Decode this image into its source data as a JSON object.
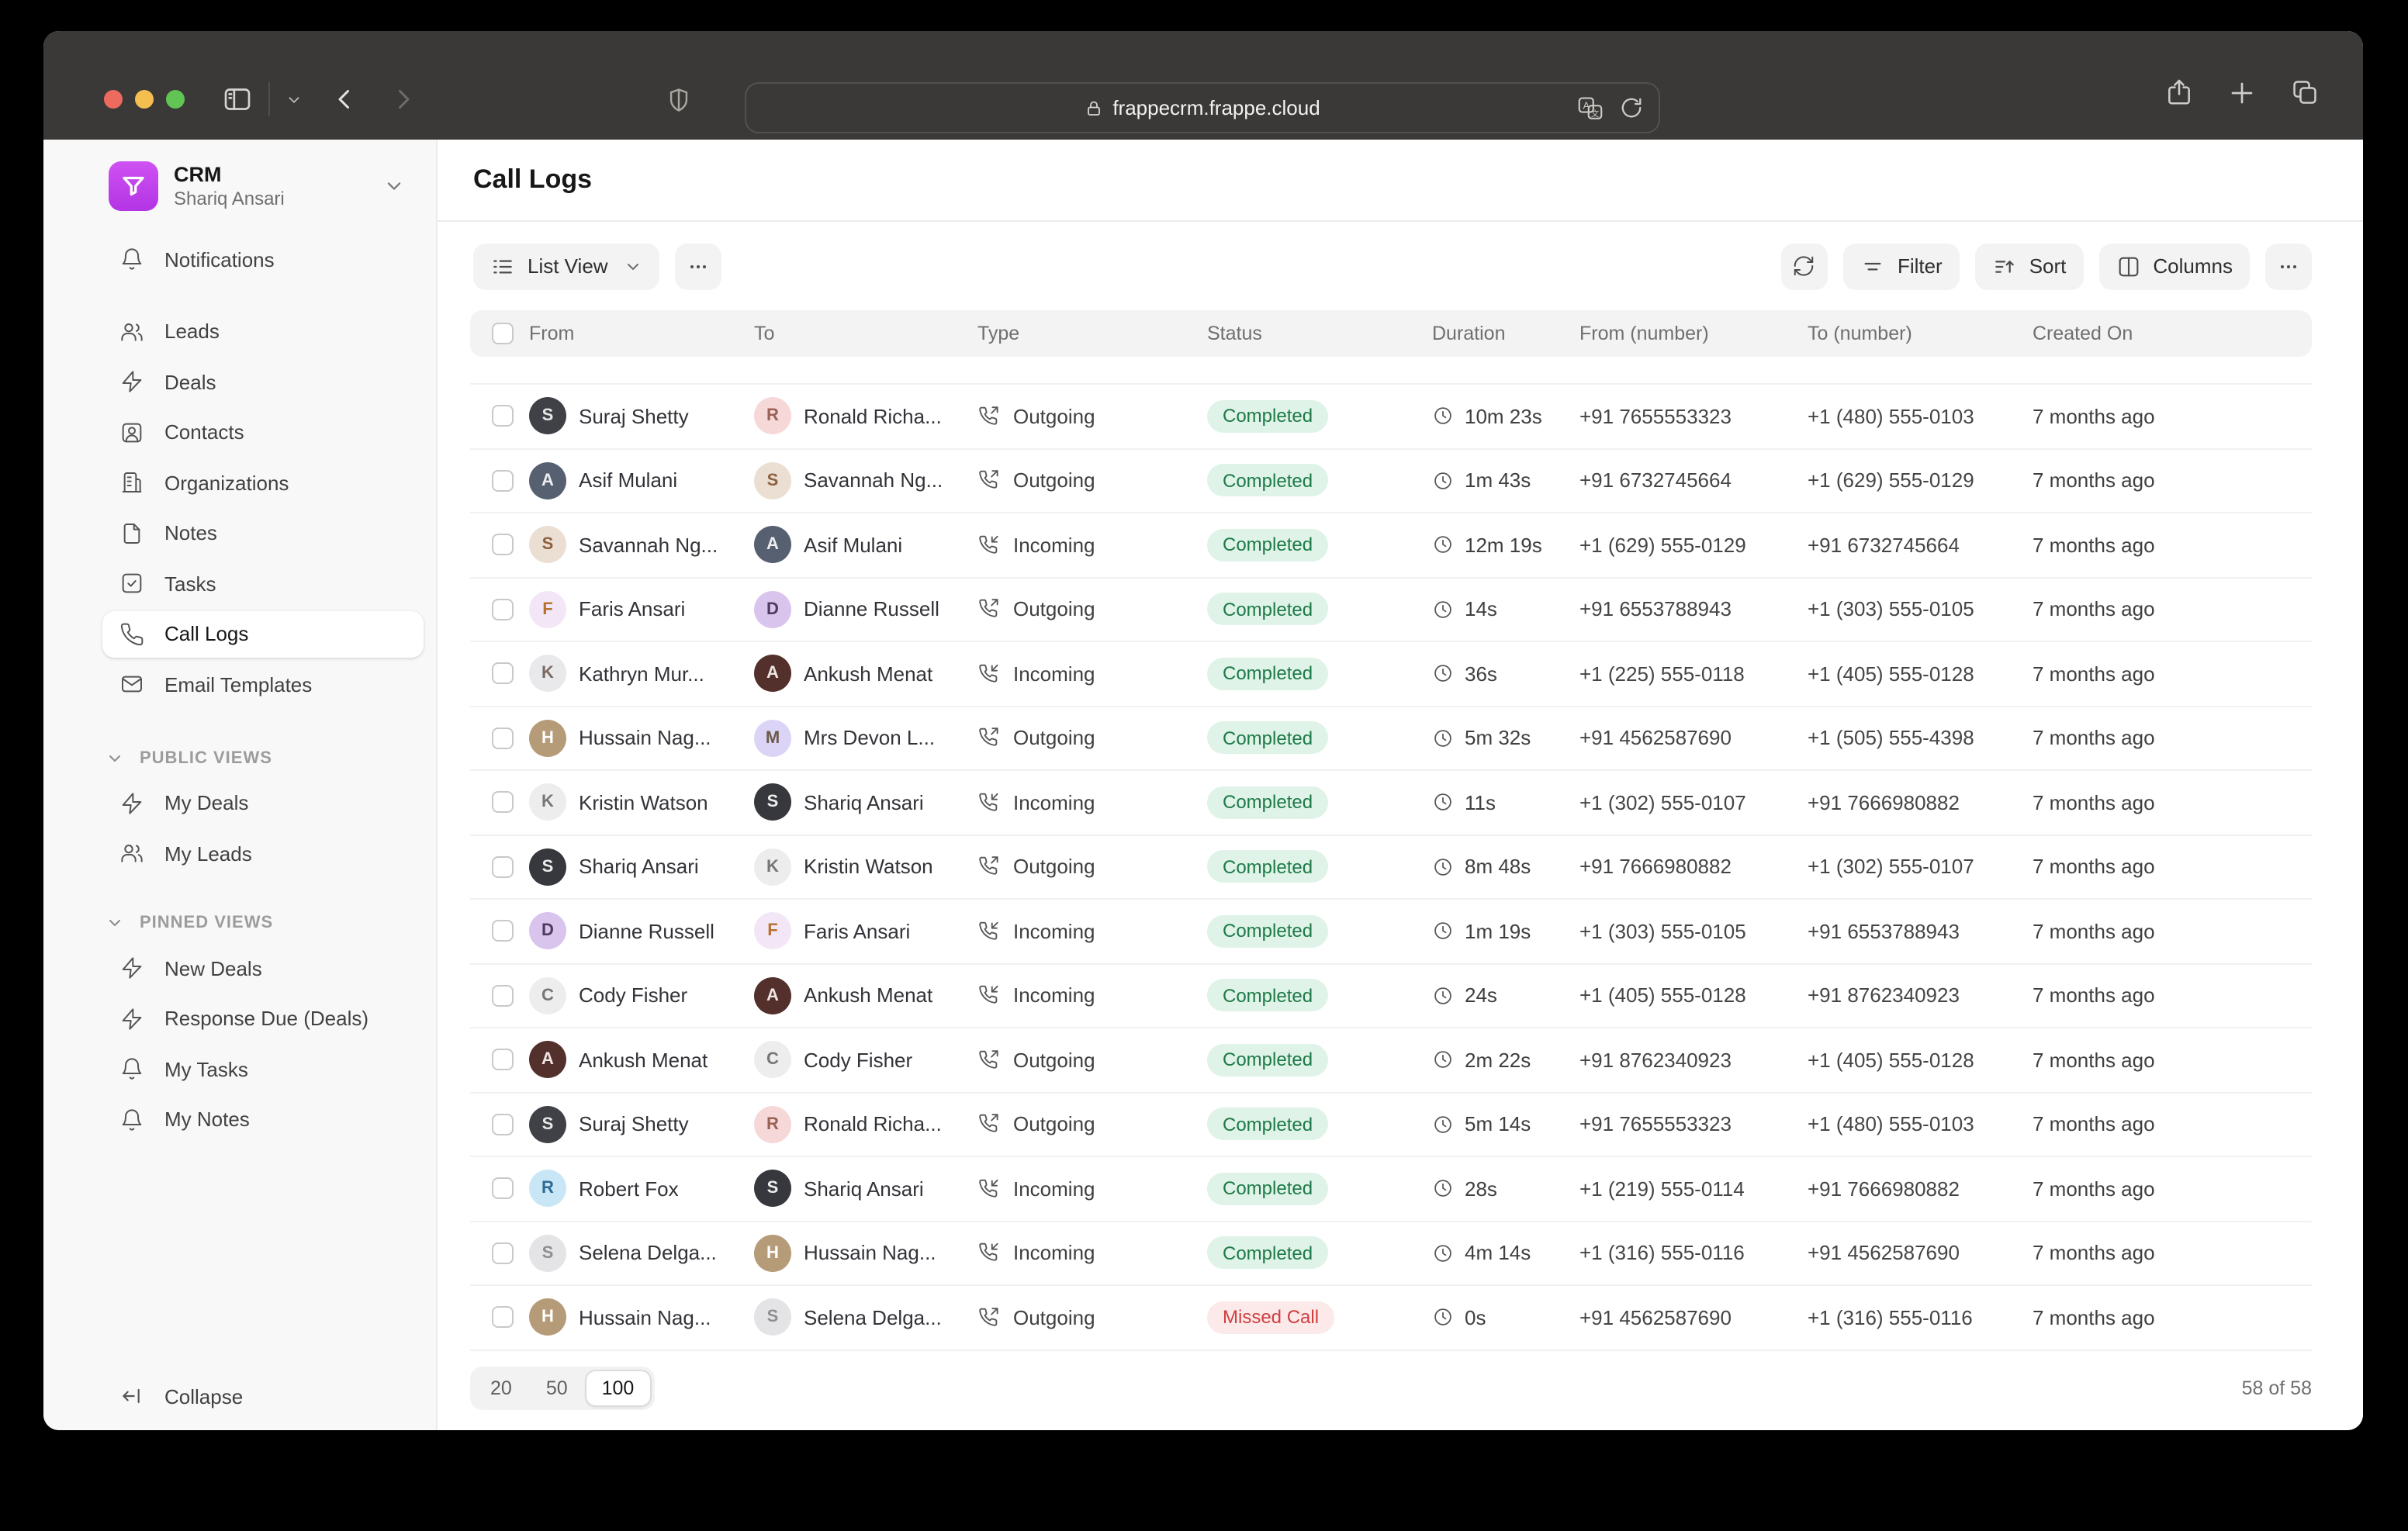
{
  "browser": {
    "url": "frappecrm.frappe.cloud",
    "icons": [
      "traffic-lights",
      "sidebar-toggle",
      "back",
      "forward",
      "shield",
      "lock",
      "translate",
      "reload",
      "share",
      "new-tab",
      "tabs-overview"
    ]
  },
  "sidebar": {
    "workspace": {
      "name": "CRM",
      "user": "Shariq Ansari"
    },
    "items": [
      {
        "label": "Notifications",
        "icon": "bell",
        "active": false,
        "gap_after": true
      },
      {
        "label": "Leads",
        "icon": "users",
        "active": false
      },
      {
        "label": "Deals",
        "icon": "zap",
        "active": false
      },
      {
        "label": "Contacts",
        "icon": "contact",
        "active": false
      },
      {
        "label": "Organizations",
        "icon": "building",
        "active": false
      },
      {
        "label": "Notes",
        "icon": "file",
        "active": false
      },
      {
        "label": "Tasks",
        "icon": "check",
        "active": false
      },
      {
        "label": "Call Logs",
        "icon": "phone",
        "active": true
      },
      {
        "label": "Email Templates",
        "icon": "mail",
        "active": false
      }
    ],
    "sections": [
      {
        "label": "PUBLIC VIEWS",
        "items": [
          {
            "label": "My Deals",
            "icon": "zap"
          },
          {
            "label": "My Leads",
            "icon": "users"
          }
        ]
      },
      {
        "label": "PINNED VIEWS",
        "items": [
          {
            "label": "New Deals",
            "icon": "zap"
          },
          {
            "label": "Response Due (Deals)",
            "icon": "zap"
          },
          {
            "label": "My Tasks",
            "icon": "bell"
          },
          {
            "label": "My Notes",
            "icon": "bell"
          }
        ]
      }
    ],
    "collapse_label": "Collapse"
  },
  "header": {
    "title": "Call Logs"
  },
  "toolbar": {
    "view_label": "List View",
    "more_label": "...",
    "filter_label": "Filter",
    "sort_label": "Sort",
    "columns_label": "Columns"
  },
  "table": {
    "columns": [
      "From",
      "To",
      "Type",
      "Status",
      "Duration",
      "From (number)",
      "To (number)",
      "Created On"
    ],
    "status_styles": {
      "Completed": {
        "bg": "#dff3e8",
        "fg": "#1d7a47"
      },
      "Missed Call": {
        "bg": "#fce9e9",
        "fg": "#cf3f3f"
      }
    },
    "type_icons": {
      "Outgoing": "phone-out",
      "Incoming": "phone-in"
    },
    "rows": [
      {
        "from": {
          "name": "Suraj Shetty",
          "bg": "#3f4147",
          "fg": "#e8e8e8",
          "initial": "S"
        },
        "to": {
          "name": "Ronald Richa...",
          "bg": "#f7d8d8",
          "fg": "#9a6155",
          "initial": "R"
        },
        "type": "Outgoing",
        "status": "Completed",
        "duration": "10m 23s",
        "from_number": "+91 7655553323",
        "to_number": "+1 (480) 555-0103",
        "created": "7 months ago"
      },
      {
        "from": {
          "name": "Asif Mulani",
          "bg": "#576071",
          "fg": "#edeef0",
          "initial": "A"
        },
        "to": {
          "name": "Savannah Ng...",
          "bg": "#eadfd2",
          "fg": "#8d5f3f",
          "initial": "S"
        },
        "type": "Outgoing",
        "status": "Completed",
        "duration": "1m 43s",
        "from_number": "+91 6732745664",
        "to_number": "+1 (629) 555-0129",
        "created": "7 months ago"
      },
      {
        "from": {
          "name": "Savannah Ng...",
          "bg": "#eadfd2",
          "fg": "#8d5f3f",
          "initial": "S"
        },
        "to": {
          "name": "Asif Mulani",
          "bg": "#576071",
          "fg": "#edeef0",
          "initial": "A"
        },
        "type": "Incoming",
        "status": "Completed",
        "duration": "12m 19s",
        "from_number": "+1 (629) 555-0129",
        "to_number": "+91 6732745664",
        "created": "7 months ago"
      },
      {
        "from": {
          "name": "Faris Ansari",
          "bg": "#f3e7f7",
          "fg": "#b7722f",
          "initial": "F"
        },
        "to": {
          "name": "Dianne Russell",
          "bg": "#d9c4ee",
          "fg": "#4f3a5e",
          "initial": "D"
        },
        "type": "Outgoing",
        "status": "Completed",
        "duration": "14s",
        "from_number": "+91 6553788943",
        "to_number": "+1 (303) 555-0105",
        "created": "7 months ago"
      },
      {
        "from": {
          "name": "Kathryn Mur...",
          "bg": "#e9e9eb",
          "fg": "#7b6a62",
          "initial": "K"
        },
        "to": {
          "name": "Ankush Menat",
          "bg": "#53302c",
          "fg": "#efe5e3",
          "initial": "A"
        },
        "type": "Incoming",
        "status": "Completed",
        "duration": "36s",
        "from_number": "+1 (225) 555-0118",
        "to_number": "+1 (405) 555-0128",
        "created": "7 months ago"
      },
      {
        "from": {
          "name": "Hussain Nag...",
          "bg": "#b59b78",
          "fg": "#ffffff",
          "initial": "H"
        },
        "to": {
          "name": "Mrs Devon L...",
          "bg": "#dcd4f7",
          "fg": "#6b5b49",
          "initial": "M"
        },
        "type": "Outgoing",
        "status": "Completed",
        "duration": "5m 32s",
        "from_number": "+91 4562587690",
        "to_number": "+1 (505) 555-4398",
        "created": "7 months ago"
      },
      {
        "from": {
          "name": "Kristin Watson",
          "bg": "#ededed",
          "fg": "#767676",
          "initial": "K"
        },
        "to": {
          "name": "Shariq Ansari",
          "bg": "#37383d",
          "fg": "#ededed",
          "initial": "S"
        },
        "type": "Incoming",
        "status": "Completed",
        "duration": "11s",
        "from_number": "+1 (302) 555-0107",
        "to_number": "+91 7666980882",
        "created": "7 months ago"
      },
      {
        "from": {
          "name": "Shariq Ansari",
          "bg": "#37383d",
          "fg": "#ededed",
          "initial": "S"
        },
        "to": {
          "name": "Kristin Watson",
          "bg": "#ededed",
          "fg": "#767676",
          "initial": "K"
        },
        "type": "Outgoing",
        "status": "Completed",
        "duration": "8m 48s",
        "from_number": "+91 7666980882",
        "to_number": "+1 (302) 555-0107",
        "created": "7 months ago"
      },
      {
        "from": {
          "name": "Dianne Russell",
          "bg": "#d9c4ee",
          "fg": "#4f3a5e",
          "initial": "D"
        },
        "to": {
          "name": "Faris Ansari",
          "bg": "#f3e7f7",
          "fg": "#b7722f",
          "initial": "F"
        },
        "type": "Incoming",
        "status": "Completed",
        "duration": "1m 19s",
        "from_number": "+1 (303) 555-0105",
        "to_number": "+91 6553788943",
        "created": "7 months ago"
      },
      {
        "from": {
          "name": "Cody Fisher",
          "bg": "#ededed",
          "fg": "#767676",
          "initial": "C"
        },
        "to": {
          "name": "Ankush Menat",
          "bg": "#53302c",
          "fg": "#efe5e3",
          "initial": "A"
        },
        "type": "Incoming",
        "status": "Completed",
        "duration": "24s",
        "from_number": "+1 (405) 555-0128",
        "to_number": "+91 8762340923",
        "created": "7 months ago"
      },
      {
        "from": {
          "name": "Ankush Menat",
          "bg": "#53302c",
          "fg": "#efe5e3",
          "initial": "A"
        },
        "to": {
          "name": "Cody Fisher",
          "bg": "#ededed",
          "fg": "#767676",
          "initial": "C"
        },
        "type": "Outgoing",
        "status": "Completed",
        "duration": "2m 22s",
        "from_number": "+91 8762340923",
        "to_number": "+1 (405) 555-0128",
        "created": "7 months ago"
      },
      {
        "from": {
          "name": "Suraj Shetty",
          "bg": "#3f4147",
          "fg": "#e8e8e8",
          "initial": "S"
        },
        "to": {
          "name": "Ronald Richa...",
          "bg": "#f7d8d8",
          "fg": "#9a6155",
          "initial": "R"
        },
        "type": "Outgoing",
        "status": "Completed",
        "duration": "5m 14s",
        "from_number": "+91 7655553323",
        "to_number": "+1 (480) 555-0103",
        "created": "7 months ago"
      },
      {
        "from": {
          "name": "Robert Fox",
          "bg": "#c9e6f7",
          "fg": "#2f6a93",
          "initial": "R"
        },
        "to": {
          "name": "Shariq Ansari",
          "bg": "#37383d",
          "fg": "#ededed",
          "initial": "S"
        },
        "type": "Incoming",
        "status": "Completed",
        "duration": "28s",
        "from_number": "+1 (219) 555-0114",
        "to_number": "+91 7666980882",
        "created": "7 months ago"
      },
      {
        "from": {
          "name": "Selena Delga...",
          "bg": "#e4e4e6",
          "fg": "#8e8e90",
          "initial": "S"
        },
        "to": {
          "name": "Hussain Nag...",
          "bg": "#b59b78",
          "fg": "#ffffff",
          "initial": "H"
        },
        "type": "Incoming",
        "status": "Completed",
        "duration": "4m 14s",
        "from_number": "+1 (316) 555-0116",
        "to_number": "+91 4562587690",
        "created": "7 months ago"
      },
      {
        "from": {
          "name": "Hussain Nag...",
          "bg": "#b59b78",
          "fg": "#ffffff",
          "initial": "H"
        },
        "to": {
          "name": "Selena Delga...",
          "bg": "#e4e4e6",
          "fg": "#8e8e90",
          "initial": "S"
        },
        "type": "Outgoing",
        "status": "Missed Call",
        "duration": "0s",
        "from_number": "+91 4562587690",
        "to_number": "+1 (316) 555-0116",
        "created": "7 months ago"
      }
    ]
  },
  "footer": {
    "page_sizes": [
      "20",
      "50",
      "100"
    ],
    "active_page_size": "100",
    "count": "58 of 58"
  }
}
